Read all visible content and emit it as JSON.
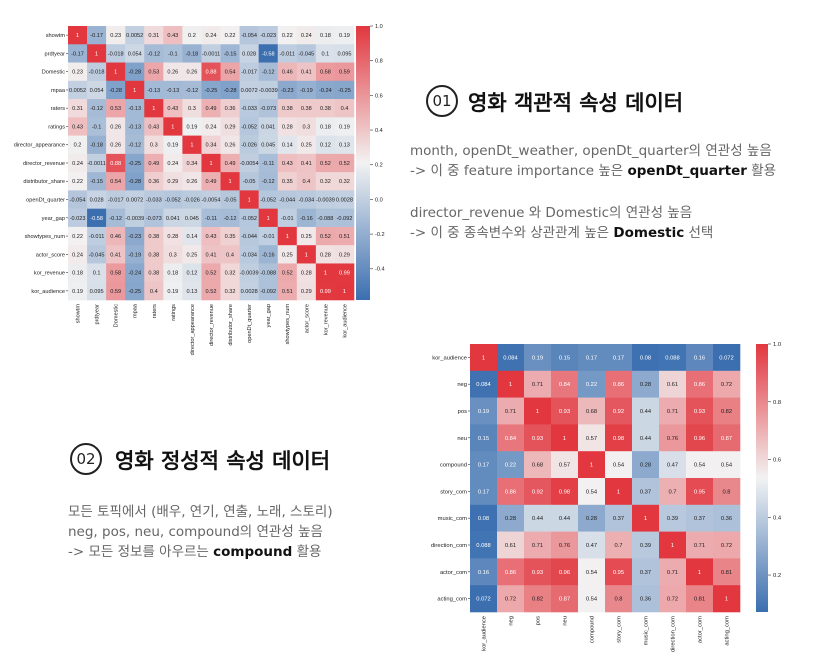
{
  "section1": {
    "number": "01",
    "title": "영화 객관적 속성 데이터",
    "lines": [
      {
        "before": "month, openDt_weather, openDt_quarter의 연관성 높음",
        "bold": "",
        "after": ""
      },
      {
        "before": "-> 이 중 feature importance 높은 ",
        "bold": "openDt_quarter",
        "after": " 활용"
      },
      {
        "before": "director_revenue 와 Domestic의 연관성 높음",
        "bold": "",
        "after": ""
      },
      {
        "before": "-> 이 중 종속변수와 상관관계 높은 ",
        "bold": "Domestic",
        "after": " 선택"
      }
    ]
  },
  "section2": {
    "number": "02",
    "title": "영화 정성적 속성 데이터",
    "lines": [
      {
        "before": "모든 토픽에서 (배우, 연기, 연출, 노래, 스토리)",
        "bold": "",
        "after": ""
      },
      {
        "before": "neg, pos, neu, compound의 연관성 높음",
        "bold": "",
        "after": ""
      },
      {
        "before": "-> 모든 정보를 아우르는 ",
        "bold": "compound",
        "after": " 활용"
      }
    ]
  },
  "colors": {
    "neg": "#3b6fb0",
    "mid": "#f2f2f2",
    "pos": "#e2373f"
  },
  "chart_data": [
    {
      "type": "heatmap",
      "labels": [
        "showtm",
        "prdtyear",
        "Domestic",
        "mpaa",
        "raters",
        "ratings",
        "director_appearance",
        "director_revenue",
        "distributor_share",
        "openDt_quarter",
        "year_gap",
        "showtypes_num",
        "actor_score",
        "kor_revenue",
        "kor_audience"
      ],
      "display": [
        [
          "1",
          "-0.17",
          "0.23",
          "0.0052",
          "0.31",
          "0.43",
          "0.2",
          "0.24",
          "0.22",
          "-0.054",
          "-0.023",
          "0.22",
          "0.24",
          "0.18",
          "0.19"
        ],
        [
          "-0.17",
          "1",
          "-0.018",
          "0.054",
          "-0.12",
          "-0.1",
          "-0.18",
          "-0.0011",
          "-0.15",
          "0.028",
          "-0.58",
          "-0.011",
          "-0.045",
          "0.1",
          "0.095"
        ],
        [
          "0.23",
          "-0.018",
          "1",
          "-0.28",
          "0.53",
          "0.26",
          "0.26",
          "0.88",
          "0.54",
          "-0.017",
          "-0.12",
          "0.46",
          "0.41",
          "0.58",
          "0.59"
        ],
        [
          "0.0052",
          "0.054",
          "-0.28",
          "1",
          "-0.13",
          "-0.13",
          "-0.12",
          "-0.25",
          "-0.28",
          "0.0072",
          "-0.0039",
          "-0.23",
          "-0.19",
          "-0.24",
          "-0.25"
        ],
        [
          "0.31",
          "-0.12",
          "0.53",
          "-0.13",
          "1",
          "0.43",
          "0.3",
          "0.49",
          "0.36",
          "-0.033",
          "-0.073",
          "0.38",
          "0.38",
          "0.38",
          "0.4"
        ],
        [
          "0.43",
          "-0.1",
          "0.26",
          "-0.13",
          "0.43",
          "1",
          "0.19",
          "0.24",
          "0.29",
          "-0.052",
          "0.041",
          "0.28",
          "0.3",
          "0.18",
          "0.19"
        ],
        [
          "0.2",
          "-0.18",
          "0.26",
          "-0.12",
          "0.3",
          "0.19",
          "1",
          "0.34",
          "0.26",
          "-0.026",
          "0.045",
          "0.14",
          "0.25",
          "0.12",
          "0.13"
        ],
        [
          "0.24",
          "-0.0011",
          "0.88",
          "-0.25",
          "0.49",
          "0.24",
          "0.34",
          "1",
          "0.49",
          "-0.0054",
          "-0.11",
          "0.43",
          "0.41",
          "0.52",
          "0.52"
        ],
        [
          "0.22",
          "-0.15",
          "0.54",
          "-0.28",
          "0.36",
          "0.29",
          "0.26",
          "0.49",
          "1",
          "-0.05",
          "-0.12",
          "0.35",
          "0.4",
          "0.32",
          "0.32"
        ],
        [
          "-0.054",
          "0.028",
          "-0.017",
          "0.0072",
          "-0.033",
          "-0.052",
          "-0.026",
          "-0.0054",
          "-0.05",
          "1",
          "-0.052",
          "-0.044",
          "-0.034",
          "-0.0039",
          "0.0028"
        ],
        [
          "-0.023",
          "-0.58",
          "-0.12",
          "-0.0039",
          "-0.073",
          "0.041",
          "0.045",
          "-0.11",
          "-0.12",
          "-0.052",
          "1",
          "-0.01",
          "-0.16",
          "-0.088",
          "-0.092"
        ],
        [
          "0.22",
          "-0.011",
          "0.46",
          "-0.23",
          "0.38",
          "0.28",
          "0.14",
          "0.43",
          "0.35",
          "-0.044",
          "-0.01",
          "1",
          "0.25",
          "0.52",
          "0.51"
        ],
        [
          "0.24",
          "-0.045",
          "0.41",
          "-0.19",
          "0.38",
          "0.3",
          "0.25",
          "0.41",
          "0.4",
          "-0.034",
          "-0.16",
          "0.25",
          "1",
          "0.28",
          "0.29"
        ],
        [
          "0.18",
          "0.1",
          "0.58",
          "-0.24",
          "0.38",
          "0.18",
          "0.12",
          "0.52",
          "0.32",
          "-0.0039",
          "-0.088",
          "0.52",
          "0.28",
          "1",
          "0.99"
        ],
        [
          "0.19",
          "0.095",
          "0.59",
          "-0.25",
          "0.4",
          "0.19",
          "0.13",
          "0.52",
          "0.32",
          "0.0028",
          "-0.092",
          "0.51",
          "0.29",
          "0.99",
          "1"
        ]
      ],
      "vmin": -0.58,
      "vmax": 1,
      "colorbar_ticks": [
        "1.0",
        "0.8",
        "0.6",
        "0.4",
        "0.2",
        "0.0",
        "-0.2",
        "-0.4"
      ]
    },
    {
      "type": "heatmap",
      "labels": [
        "kor_audience",
        "neg",
        "pos",
        "neu",
        "compound",
        "story_com",
        "music_com",
        "direction_com",
        "actor_com",
        "acting_com"
      ],
      "display": [
        [
          "1",
          "0.084",
          "0.19",
          "0.15",
          "0.17",
          "0.17",
          "0.08",
          "0.088",
          "0.16",
          "0.072"
        ],
        [
          "0.084",
          "1",
          "0.71",
          "0.84",
          "0.22",
          "0.86",
          "0.28",
          "0.61",
          "0.86",
          "0.72"
        ],
        [
          "0.19",
          "0.71",
          "1",
          "0.93",
          "0.68",
          "0.92",
          "0.44",
          "0.71",
          "0.93",
          "0.82"
        ],
        [
          "0.15",
          "0.84",
          "0.93",
          "1",
          "0.57",
          "0.98",
          "0.44",
          "0.76",
          "0.96",
          "0.87"
        ],
        [
          "0.17",
          "0.22",
          "0.68",
          "0.57",
          "1",
          "0.54",
          "0.28",
          "0.47",
          "0.54",
          "0.54"
        ],
        [
          "0.17",
          "0.86",
          "0.92",
          "0.98",
          "0.54",
          "1",
          "0.37",
          "0.7",
          "0.95",
          "0.8"
        ],
        [
          "0.08",
          "0.28",
          "0.44",
          "0.44",
          "0.28",
          "0.37",
          "1",
          "0.39",
          "0.37",
          "0.36"
        ],
        [
          "0.088",
          "0.61",
          "0.71",
          "0.76",
          "0.47",
          "0.7",
          "0.39",
          "1",
          "0.71",
          "0.72"
        ],
        [
          "0.16",
          "0.86",
          "0.93",
          "0.96",
          "0.54",
          "0.95",
          "0.37",
          "0.71",
          "1",
          "0.81"
        ],
        [
          "0.072",
          "0.72",
          "0.82",
          "0.87",
          "0.54",
          "0.8",
          "0.36",
          "0.72",
          "0.81",
          "1"
        ]
      ],
      "vmin": 0.072,
      "vmax": 1,
      "colorbar_ticks": [
        "1.0",
        "0.8",
        "0.6",
        "0.4",
        "0.2"
      ]
    }
  ]
}
